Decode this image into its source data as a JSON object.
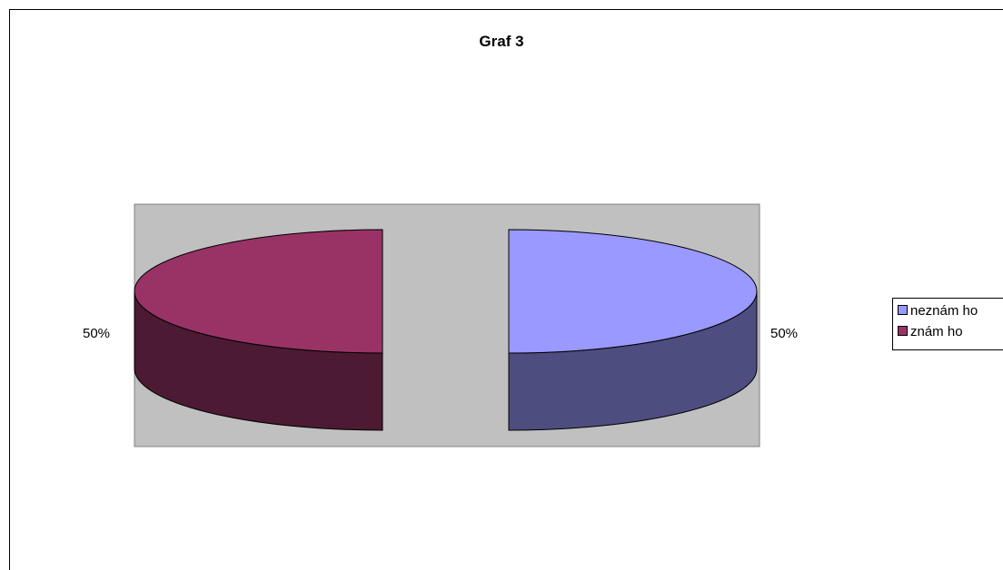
{
  "chart_data": {
    "type": "pie",
    "title": "Graf 3",
    "slices": [
      {
        "name": "neznám ho",
        "value": 50,
        "label": "50%",
        "color": "#9999ff",
        "side_color": "#4d4d80"
      },
      {
        "name": "znám ho",
        "value": 50,
        "label": "50%",
        "color": "#993366",
        "side_color": "#4d1a33"
      }
    ],
    "legend_position": "right",
    "exploded": true,
    "three_d": true,
    "plot_area_color": "#c0c0c0"
  }
}
